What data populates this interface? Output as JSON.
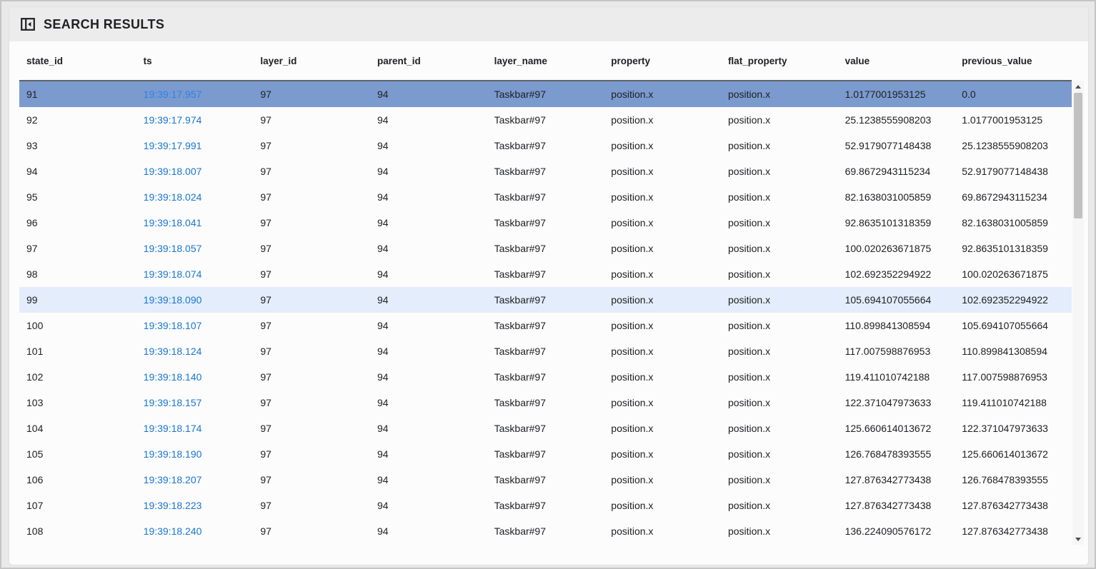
{
  "panel": {
    "title": "SEARCH RESULTS",
    "icon": "dock-panel-left-icon"
  },
  "table": {
    "columns": [
      {
        "key": "state_id",
        "label": "state_id"
      },
      {
        "key": "ts",
        "label": "ts"
      },
      {
        "key": "layer_id",
        "label": "layer_id"
      },
      {
        "key": "parent_id",
        "label": "parent_id"
      },
      {
        "key": "layer_name",
        "label": "layer_name"
      },
      {
        "key": "property",
        "label": "property"
      },
      {
        "key": "flat_property",
        "label": "flat_property"
      },
      {
        "key": "value",
        "label": "value"
      },
      {
        "key": "previous_value",
        "label": "previous_value"
      }
    ],
    "rows": [
      {
        "state_id": "91",
        "ts": "19:39:17.957",
        "layer_id": "97",
        "parent_id": "94",
        "layer_name": "Taskbar#97",
        "property": "position.x",
        "flat_property": "position.x",
        "value": "1.0177001953125",
        "previous_value": "0.0",
        "row_state": "selected"
      },
      {
        "state_id": "92",
        "ts": "19:39:17.974",
        "layer_id": "97",
        "parent_id": "94",
        "layer_name": "Taskbar#97",
        "property": "position.x",
        "flat_property": "position.x",
        "value": "25.1238555908203",
        "previous_value": "1.0177001953125",
        "row_state": "normal"
      },
      {
        "state_id": "93",
        "ts": "19:39:17.991",
        "layer_id": "97",
        "parent_id": "94",
        "layer_name": "Taskbar#97",
        "property": "position.x",
        "flat_property": "position.x",
        "value": "52.9179077148438",
        "previous_value": "25.1238555908203",
        "row_state": "normal"
      },
      {
        "state_id": "94",
        "ts": "19:39:18.007",
        "layer_id": "97",
        "parent_id": "94",
        "layer_name": "Taskbar#97",
        "property": "position.x",
        "flat_property": "position.x",
        "value": "69.8672943115234",
        "previous_value": "52.9179077148438",
        "row_state": "normal"
      },
      {
        "state_id": "95",
        "ts": "19:39:18.024",
        "layer_id": "97",
        "parent_id": "94",
        "layer_name": "Taskbar#97",
        "property": "position.x",
        "flat_property": "position.x",
        "value": "82.1638031005859",
        "previous_value": "69.8672943115234",
        "row_state": "normal"
      },
      {
        "state_id": "96",
        "ts": "19:39:18.041",
        "layer_id": "97",
        "parent_id": "94",
        "layer_name": "Taskbar#97",
        "property": "position.x",
        "flat_property": "position.x",
        "value": "92.8635101318359",
        "previous_value": "82.1638031005859",
        "row_state": "normal"
      },
      {
        "state_id": "97",
        "ts": "19:39:18.057",
        "layer_id": "97",
        "parent_id": "94",
        "layer_name": "Taskbar#97",
        "property": "position.x",
        "flat_property": "position.x",
        "value": "100.020263671875",
        "previous_value": "92.8635101318359",
        "row_state": "normal"
      },
      {
        "state_id": "98",
        "ts": "19:39:18.074",
        "layer_id": "97",
        "parent_id": "94",
        "layer_name": "Taskbar#97",
        "property": "position.x",
        "flat_property": "position.x",
        "value": "102.692352294922",
        "previous_value": "100.020263671875",
        "row_state": "normal"
      },
      {
        "state_id": "99",
        "ts": "19:39:18.090",
        "layer_id": "97",
        "parent_id": "94",
        "layer_name": "Taskbar#97",
        "property": "position.x",
        "flat_property": "position.x",
        "value": "105.694107055664",
        "previous_value": "102.692352294922",
        "row_state": "highlighted"
      },
      {
        "state_id": "100",
        "ts": "19:39:18.107",
        "layer_id": "97",
        "parent_id": "94",
        "layer_name": "Taskbar#97",
        "property": "position.x",
        "flat_property": "position.x",
        "value": "110.899841308594",
        "previous_value": "105.694107055664",
        "row_state": "normal"
      },
      {
        "state_id": "101",
        "ts": "19:39:18.124",
        "layer_id": "97",
        "parent_id": "94",
        "layer_name": "Taskbar#97",
        "property": "position.x",
        "flat_property": "position.x",
        "value": "117.007598876953",
        "previous_value": "110.899841308594",
        "row_state": "normal"
      },
      {
        "state_id": "102",
        "ts": "19:39:18.140",
        "layer_id": "97",
        "parent_id": "94",
        "layer_name": "Taskbar#97",
        "property": "position.x",
        "flat_property": "position.x",
        "value": "119.411010742188",
        "previous_value": "117.007598876953",
        "row_state": "normal"
      },
      {
        "state_id": "103",
        "ts": "19:39:18.157",
        "layer_id": "97",
        "parent_id": "94",
        "layer_name": "Taskbar#97",
        "property": "position.x",
        "flat_property": "position.x",
        "value": "122.371047973633",
        "previous_value": "119.411010742188",
        "row_state": "normal"
      },
      {
        "state_id": "104",
        "ts": "19:39:18.174",
        "layer_id": "97",
        "parent_id": "94",
        "layer_name": "Taskbar#97",
        "property": "position.x",
        "flat_property": "position.x",
        "value": "125.660614013672",
        "previous_value": "122.371047973633",
        "row_state": "normal"
      },
      {
        "state_id": "105",
        "ts": "19:39:18.190",
        "layer_id": "97",
        "parent_id": "94",
        "layer_name": "Taskbar#97",
        "property": "position.x",
        "flat_property": "position.x",
        "value": "126.768478393555",
        "previous_value": "125.660614013672",
        "row_state": "normal"
      },
      {
        "state_id": "106",
        "ts": "19:39:18.207",
        "layer_id": "97",
        "parent_id": "94",
        "layer_name": "Taskbar#97",
        "property": "position.x",
        "flat_property": "position.x",
        "value": "127.876342773438",
        "previous_value": "126.768478393555",
        "row_state": "normal"
      },
      {
        "state_id": "107",
        "ts": "19:39:18.223",
        "layer_id": "97",
        "parent_id": "94",
        "layer_name": "Taskbar#97",
        "property": "position.x",
        "flat_property": "position.x",
        "value": "127.876342773438",
        "previous_value": "127.876342773438",
        "row_state": "normal"
      },
      {
        "state_id": "108",
        "ts": "19:39:18.240",
        "layer_id": "97",
        "parent_id": "94",
        "layer_name": "Taskbar#97",
        "property": "position.x",
        "flat_property": "position.x",
        "value": "136.224090576172",
        "previous_value": "127.876342773438",
        "row_state": "normal"
      }
    ]
  },
  "scrollbar": {
    "orientation": "vertical",
    "thumb_position": "top",
    "up_arrow": "up-arrow-icon",
    "down_arrow": "down-arrow-icon"
  },
  "colors": {
    "selected_row_bg": "#7b9ace",
    "highlighted_row_bg": "#e3edfb",
    "timestamp_link": "#1976d2",
    "selected_timestamp_link": "#2f82e8",
    "header_underline": "#5f6368"
  }
}
